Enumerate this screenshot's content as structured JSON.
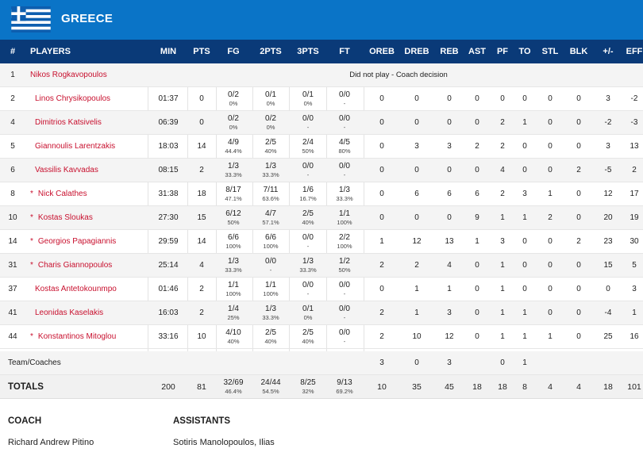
{
  "team": {
    "name": "GREECE",
    "flag_icon": "greece-flag-icon",
    "header_color": "#0a74c7",
    "table_header_color": "#0a3a78",
    "accent": "#c8102e"
  },
  "columns": {
    "num": "#",
    "player": "PLAYERS",
    "min": "MIN",
    "pts": "PTS",
    "fg": "FG",
    "two": "2PTS",
    "three": "3PTS",
    "ft": "FT",
    "oreb": "OREB",
    "dreb": "DREB",
    "reb": "REB",
    "ast": "AST",
    "pf": "PF",
    "to": "TO",
    "stl": "STL",
    "blk": "BLK",
    "pm": "+/-",
    "eff": "EFF"
  },
  "players": [
    {
      "num": "1",
      "name": "Nikos Rogkavopoulos",
      "starter": "",
      "dnp": "Did not play - Coach decision"
    },
    {
      "num": "2",
      "name": "Linos Chrysikopoulos",
      "starter": "",
      "min": "01:37",
      "pts": "0",
      "fg": "0/2",
      "fg_pct": "0%",
      "two": "0/1",
      "two_pct": "0%",
      "three": "0/1",
      "three_pct": "0%",
      "ft": "0/0",
      "ft_pct": "-",
      "oreb": "0",
      "dreb": "0",
      "reb": "0",
      "ast": "0",
      "pf": "0",
      "to": "0",
      "stl": "0",
      "blk": "0",
      "pm": "3",
      "eff": "-2"
    },
    {
      "num": "4",
      "name": "Dimitrios Katsivelis",
      "starter": "",
      "min": "06:39",
      "pts": "0",
      "fg": "0/2",
      "fg_pct": "0%",
      "two": "0/2",
      "two_pct": "0%",
      "three": "0/0",
      "three_pct": "-",
      "ft": "0/0",
      "ft_pct": "-",
      "oreb": "0",
      "dreb": "0",
      "reb": "0",
      "ast": "0",
      "pf": "2",
      "to": "1",
      "stl": "0",
      "blk": "0",
      "pm": "-2",
      "eff": "-3"
    },
    {
      "num": "5",
      "name": "Giannoulis Larentzakis",
      "starter": "",
      "min": "18:03",
      "pts": "14",
      "fg": "4/9",
      "fg_pct": "44.4%",
      "two": "2/5",
      "two_pct": "40%",
      "three": "2/4",
      "three_pct": "50%",
      "ft": "4/5",
      "ft_pct": "80%",
      "oreb": "0",
      "dreb": "3",
      "reb": "3",
      "ast": "2",
      "pf": "2",
      "to": "0",
      "stl": "0",
      "blk": "0",
      "pm": "3",
      "eff": "13"
    },
    {
      "num": "6",
      "name": "Vassilis Kavvadas",
      "starter": "",
      "min": "08:15",
      "pts": "2",
      "fg": "1/3",
      "fg_pct": "33.3%",
      "two": "1/3",
      "two_pct": "33.3%",
      "three": "0/0",
      "three_pct": "-",
      "ft": "0/0",
      "ft_pct": "-",
      "oreb": "0",
      "dreb": "0",
      "reb": "0",
      "ast": "0",
      "pf": "4",
      "to": "0",
      "stl": "0",
      "blk": "2",
      "pm": "-5",
      "eff": "2"
    },
    {
      "num": "8",
      "name": "Nick Calathes",
      "starter": "*",
      "min": "31:38",
      "pts": "18",
      "fg": "8/17",
      "fg_pct": "47.1%",
      "two": "7/11",
      "two_pct": "63.6%",
      "three": "1/6",
      "three_pct": "16.7%",
      "ft": "1/3",
      "ft_pct": "33.3%",
      "oreb": "0",
      "dreb": "6",
      "reb": "6",
      "ast": "6",
      "pf": "2",
      "to": "3",
      "stl": "1",
      "blk": "0",
      "pm": "12",
      "eff": "17"
    },
    {
      "num": "10",
      "name": "Kostas Sloukas",
      "starter": "*",
      "min": "27:30",
      "pts": "15",
      "fg": "6/12",
      "fg_pct": "50%",
      "two": "4/7",
      "two_pct": "57.1%",
      "three": "2/5",
      "three_pct": "40%",
      "ft": "1/1",
      "ft_pct": "100%",
      "oreb": "0",
      "dreb": "0",
      "reb": "0",
      "ast": "9",
      "pf": "1",
      "to": "1",
      "stl": "2",
      "blk": "0",
      "pm": "20",
      "eff": "19"
    },
    {
      "num": "14",
      "name": "Georgios Papagiannis",
      "starter": "*",
      "min": "29:59",
      "pts": "14",
      "fg": "6/6",
      "fg_pct": "100%",
      "two": "6/6",
      "two_pct": "100%",
      "three": "0/0",
      "three_pct": "-",
      "ft": "2/2",
      "ft_pct": "100%",
      "oreb": "1",
      "dreb": "12",
      "reb": "13",
      "ast": "1",
      "pf": "3",
      "to": "0",
      "stl": "0",
      "blk": "2",
      "pm": "23",
      "eff": "30"
    },
    {
      "num": "31",
      "name": "Charis Giannopoulos",
      "starter": "*",
      "min": "25:14",
      "pts": "4",
      "fg": "1/3",
      "fg_pct": "33.3%",
      "two": "0/0",
      "two_pct": "-",
      "three": "1/3",
      "three_pct": "33.3%",
      "ft": "1/2",
      "ft_pct": "50%",
      "oreb": "2",
      "dreb": "2",
      "reb": "4",
      "ast": "0",
      "pf": "1",
      "to": "0",
      "stl": "0",
      "blk": "0",
      "pm": "15",
      "eff": "5"
    },
    {
      "num": "37",
      "name": "Kostas Antetokounmpo",
      "starter": "",
      "min": "01:46",
      "pts": "2",
      "fg": "1/1",
      "fg_pct": "100%",
      "two": "1/1",
      "two_pct": "100%",
      "three": "0/0",
      "three_pct": "-",
      "ft": "0/0",
      "ft_pct": "-",
      "oreb": "0",
      "dreb": "1",
      "reb": "1",
      "ast": "0",
      "pf": "1",
      "to": "0",
      "stl": "0",
      "blk": "0",
      "pm": "0",
      "eff": "3"
    },
    {
      "num": "41",
      "name": "Leonidas Kaselakis",
      "starter": "",
      "min": "16:03",
      "pts": "2",
      "fg": "1/4",
      "fg_pct": "25%",
      "two": "1/3",
      "two_pct": "33.3%",
      "three": "0/1",
      "three_pct": "0%",
      "ft": "0/0",
      "ft_pct": "-",
      "oreb": "2",
      "dreb": "1",
      "reb": "3",
      "ast": "0",
      "pf": "1",
      "to": "1",
      "stl": "0",
      "blk": "0",
      "pm": "-4",
      "eff": "1"
    },
    {
      "num": "44",
      "name": "Konstantinos Mitoglou",
      "starter": "*",
      "min": "33:16",
      "pts": "10",
      "fg": "4/10",
      "fg_pct": "40%",
      "two": "2/5",
      "two_pct": "40%",
      "three": "2/5",
      "three_pct": "40%",
      "ft": "0/0",
      "ft_pct": "-",
      "oreb": "2",
      "dreb": "10",
      "reb": "12",
      "ast": "0",
      "pf": "1",
      "to": "1",
      "stl": "1",
      "blk": "0",
      "pm": "25",
      "eff": "16"
    }
  ],
  "team_coaches": {
    "label": "Team/Coaches",
    "oreb": "3",
    "dreb": "0",
    "reb": "3",
    "pf": "0",
    "to": "1"
  },
  "totals": {
    "label": "TOTALS",
    "min": "200",
    "pts": "81",
    "fg": "32/69",
    "fg_pct": "46.4%",
    "two": "24/44",
    "two_pct": "54.5%",
    "three": "8/25",
    "three_pct": "32%",
    "ft": "9/13",
    "ft_pct": "69.2%",
    "oreb": "10",
    "dreb": "35",
    "reb": "45",
    "ast": "18",
    "pf": "18",
    "to": "8",
    "stl": "4",
    "blk": "4",
    "pm": "18",
    "eff": "101"
  },
  "staff": {
    "coach_label": "COACH",
    "coach_name": "Richard Andrew Pitino",
    "assistants_label": "ASSISTANTS",
    "assistants_names": "Sotiris Manolopoulos, Ilias"
  }
}
